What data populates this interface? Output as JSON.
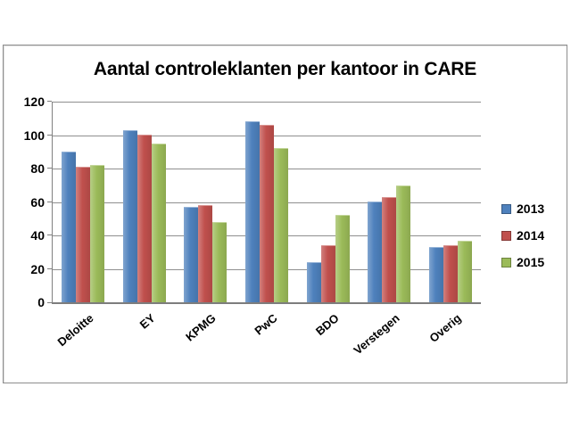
{
  "chart_data": {
    "type": "bar",
    "title": "Aantal controleklanten per kantoor in CARE",
    "categories": [
      "Deloitte",
      "EY",
      "KPMG",
      "PwC",
      "BDO",
      "Verstegen",
      "Overig"
    ],
    "series": [
      {
        "name": "2013",
        "color": "#4E81BD",
        "values": [
          90,
          103,
          57,
          108,
          24,
          60,
          33
        ]
      },
      {
        "name": "2014",
        "color": "#C0504D",
        "values": [
          81,
          100,
          58,
          106,
          34,
          63,
          34
        ]
      },
      {
        "name": "2015",
        "color": "#9BBB59",
        "values": [
          82,
          95,
          48,
          92,
          52,
          70,
          37
        ]
      }
    ],
    "xlabel": "",
    "ylabel": "",
    "ylim": [
      0,
      120
    ],
    "yticks": [
      0,
      20,
      40,
      60,
      80,
      100,
      120
    ],
    "grid": true,
    "legend_position": "right",
    "legend_labels": [
      "2013",
      "2014",
      "2015"
    ],
    "colors": {
      "gridline": "#8f8f8f",
      "axis": "#808080",
      "frame_border": "#8E8E8E",
      "background": "#FFFFFF",
      "text": "#000000"
    }
  }
}
